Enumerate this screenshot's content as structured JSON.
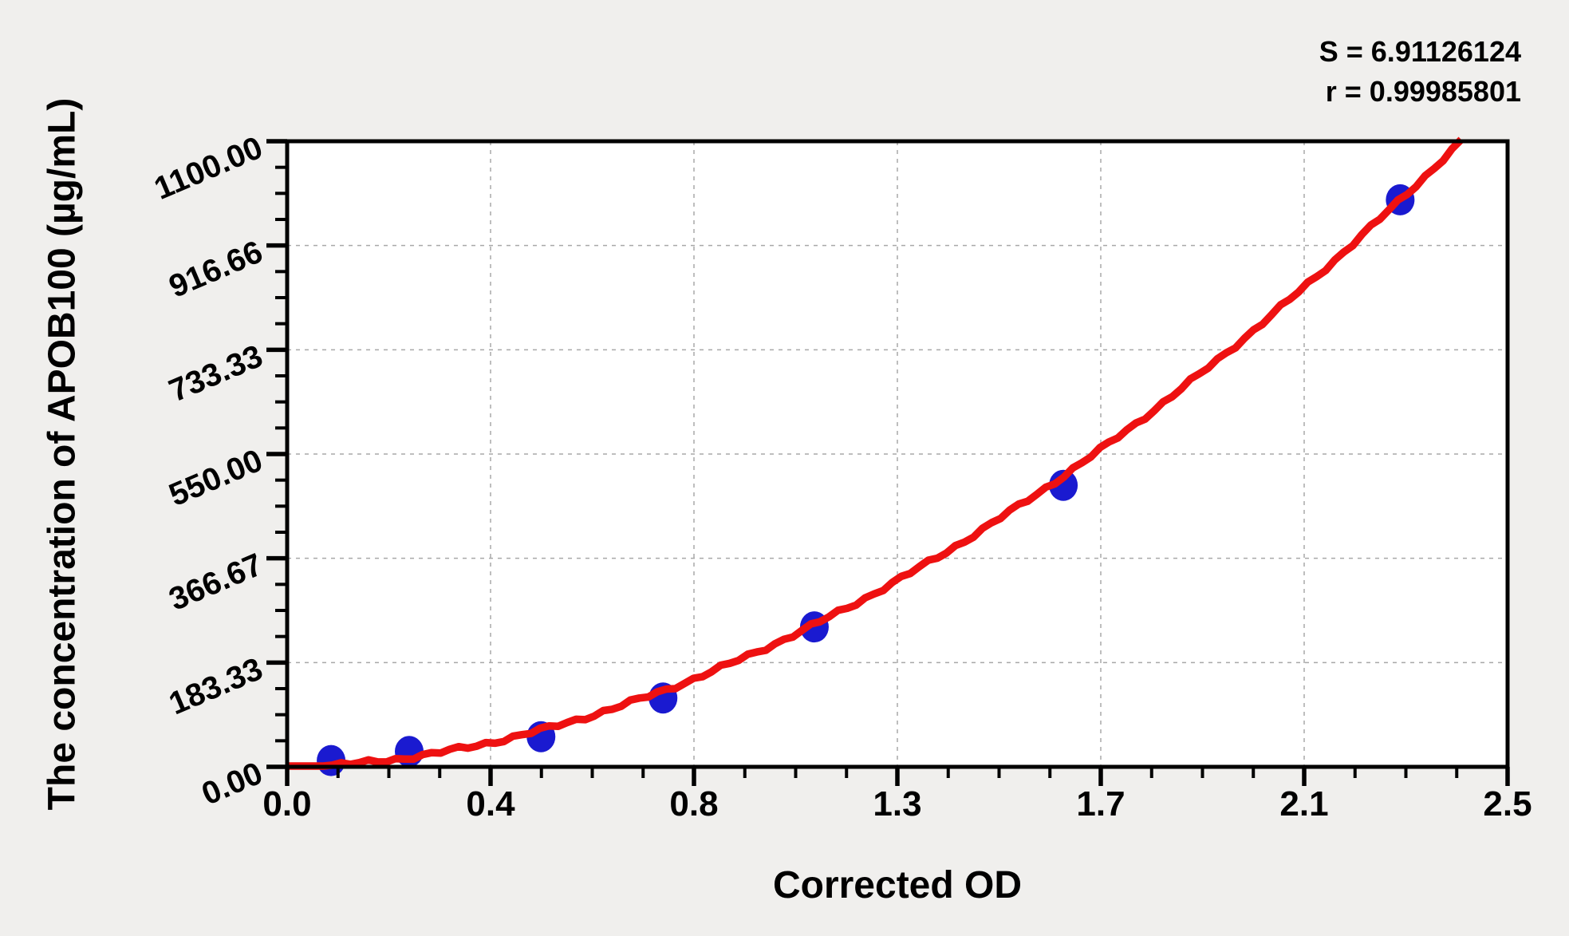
{
  "stats": {
    "s_line": "S = 6.91126124",
    "r_line": "r = 0.99985801"
  },
  "chart_data": {
    "type": "scatter",
    "title": "",
    "xlabel": "Corrected OD",
    "ylabel": "The concentration of APOB100 (µg/mL)",
    "xlim": [
      0,
      2.5
    ],
    "ylim": [
      0,
      1100
    ],
    "x_tick_labels": [
      "0.0",
      "0.4",
      "0.8",
      "1.3",
      "1.7",
      "2.1",
      "2.5"
    ],
    "y_tick_labels": [
      "0.00",
      "183.33",
      "366.67",
      "550.00",
      "733.33",
      "916.66",
      "1100.00"
    ],
    "x_major_divisions": 6,
    "y_major_divisions": 6,
    "minor_ticks_per_major": 3,
    "grid": {
      "show": true,
      "style": "dashed",
      "color": "#a8a8a8"
    },
    "legend": "none",
    "points": [
      {
        "x": 0.09,
        "y": 11
      },
      {
        "x": 0.25,
        "y": 27
      },
      {
        "x": 0.52,
        "y": 53
      },
      {
        "x": 0.77,
        "y": 121
      },
      {
        "x": 1.08,
        "y": 246
      },
      {
        "x": 1.59,
        "y": 495
      },
      {
        "x": 2.28,
        "y": 997
      }
    ],
    "fit_curve": {
      "type": "power",
      "a": 217,
      "b": 1.85,
      "x_start": 0,
      "x_end": 2.405
    },
    "colors": {
      "point": "#1a1ad0",
      "curve": "#ee1111",
      "axis": "#000000",
      "plot_bg": "#ffffff",
      "page_bg": "#f0efed",
      "grid": "#a8a8a8"
    }
  }
}
